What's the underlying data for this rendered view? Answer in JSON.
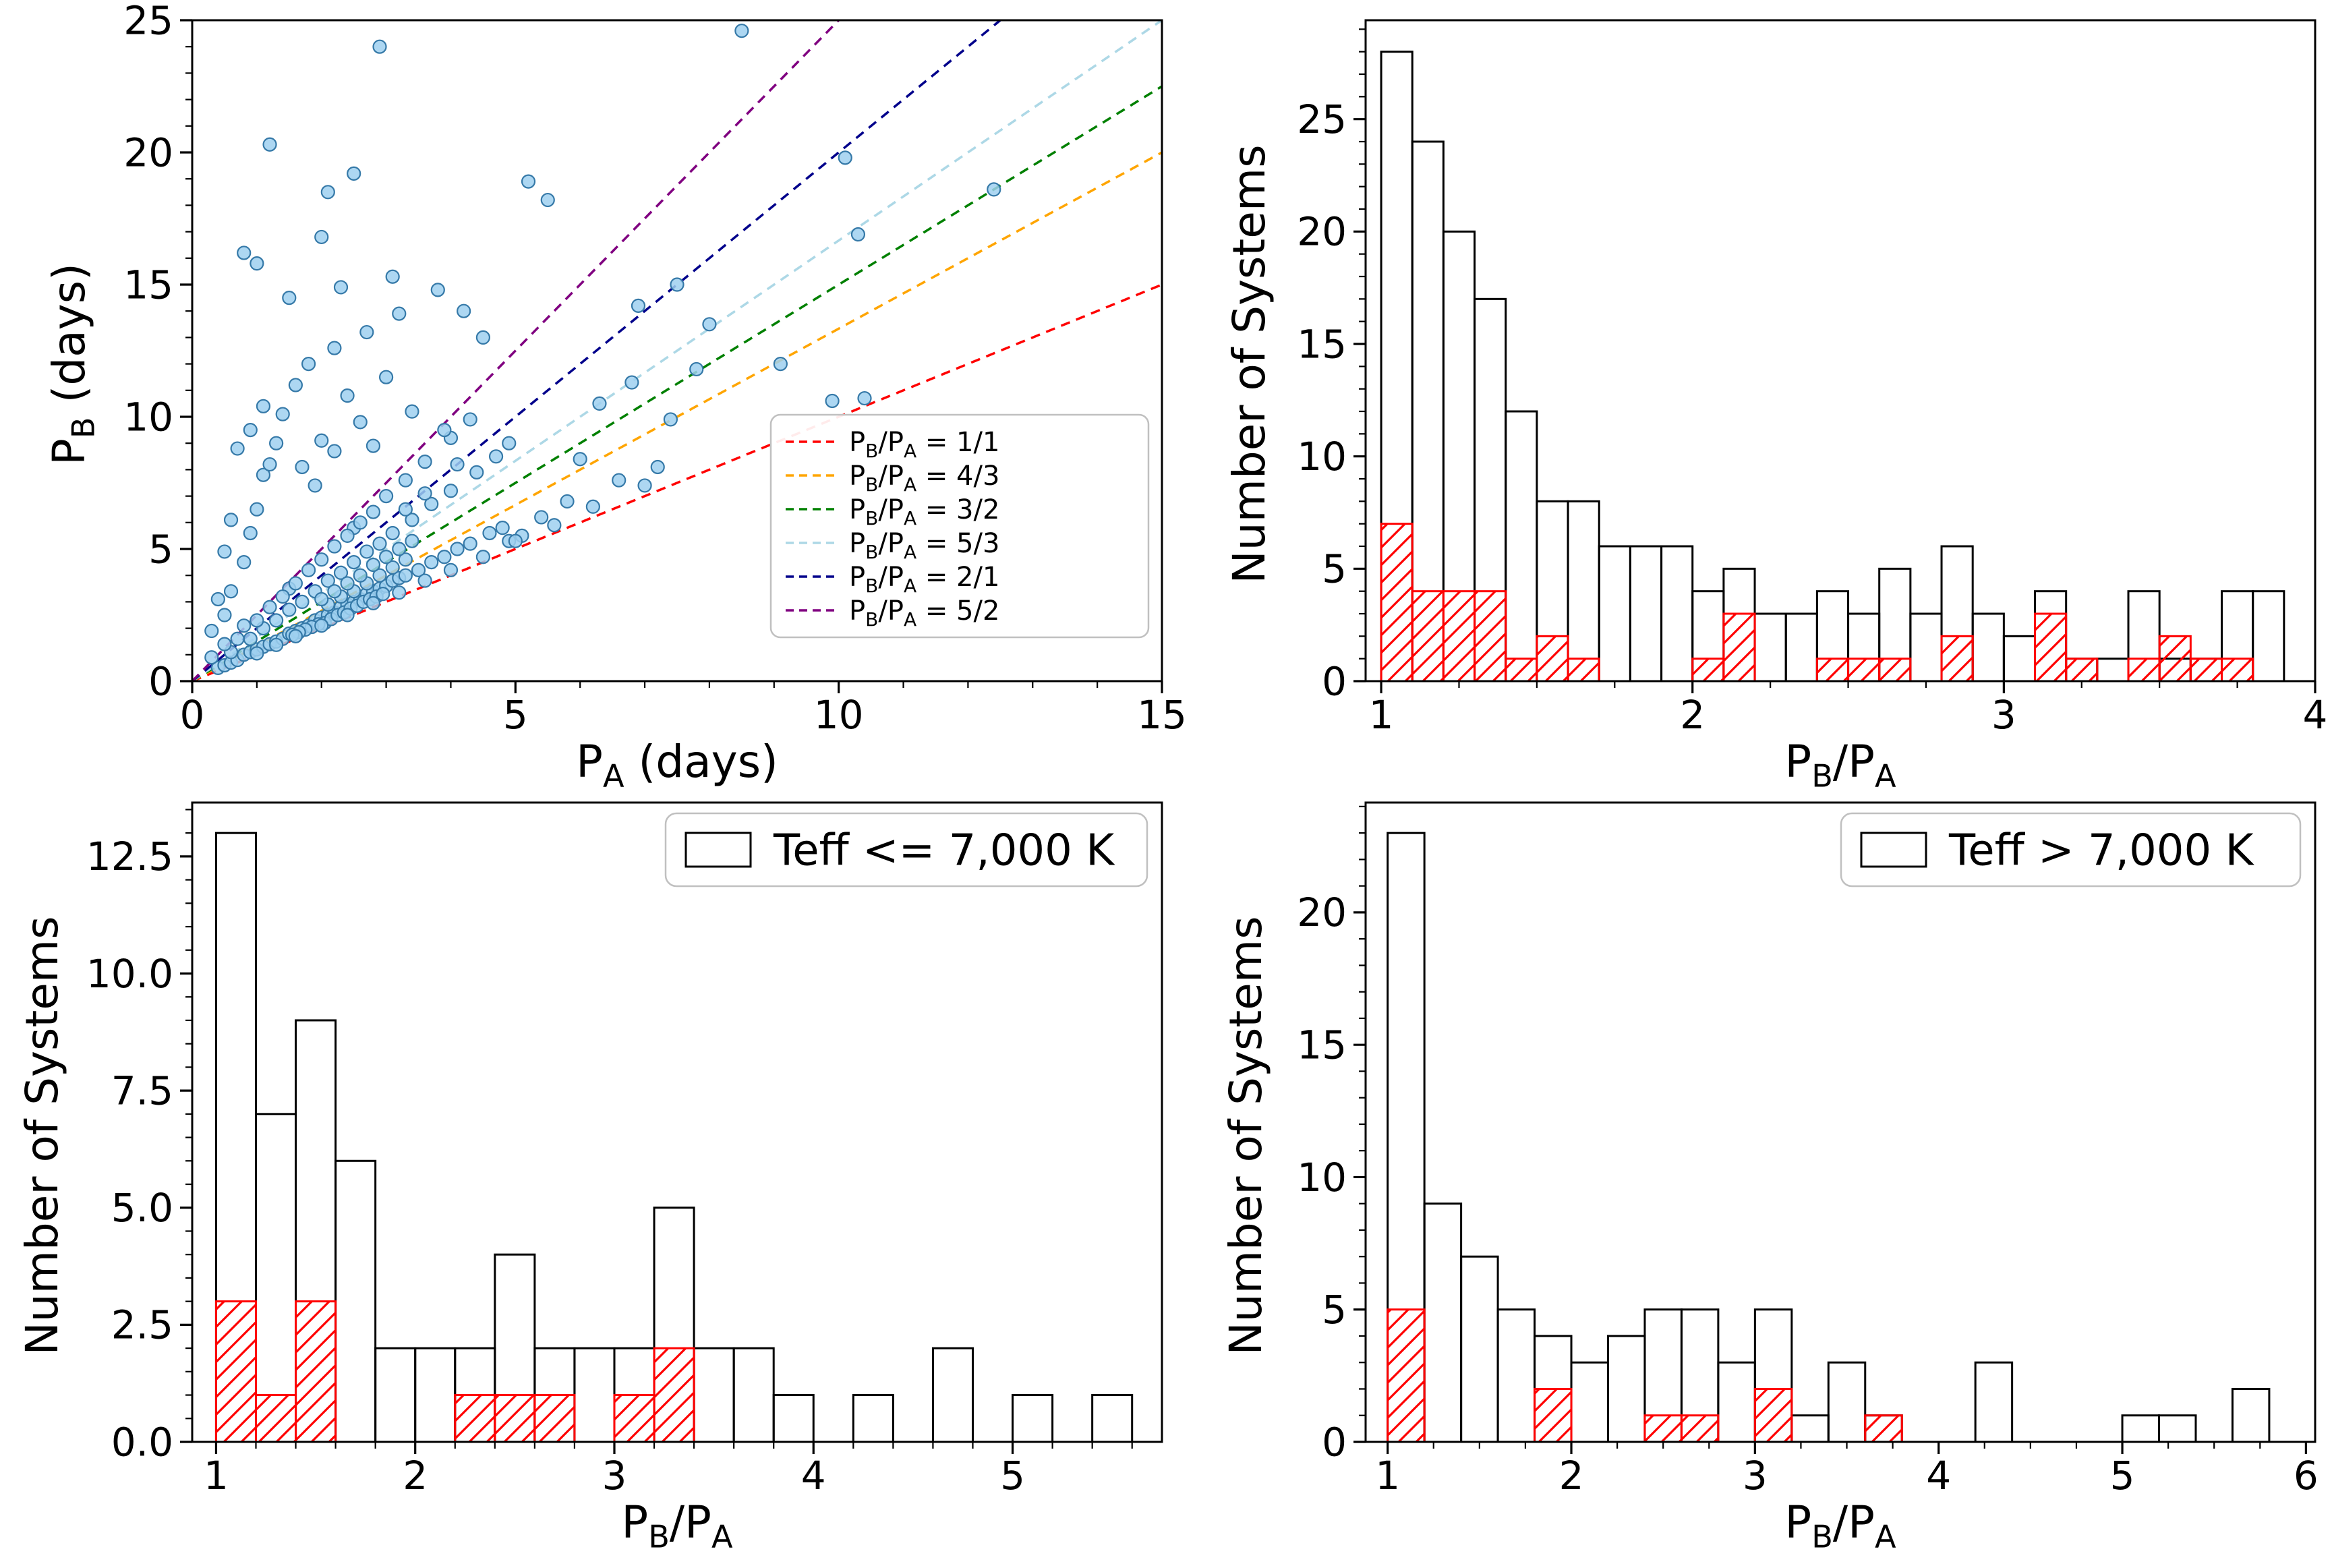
{
  "figure": {
    "background": "#ffffff"
  },
  "chart_data": [
    {
      "id": "scatter-periods",
      "type": "scatter",
      "title": "",
      "xlabel": "P_A (days)",
      "ylabel": "P_B (days)",
      "xlim": [
        0,
        15
      ],
      "ylim": [
        0,
        25
      ],
      "xticks": [
        0,
        5,
        10,
        15
      ],
      "xtick_labels": [
        "0",
        "5",
        "10",
        "15"
      ],
      "yticks": [
        0,
        5,
        10,
        15,
        20,
        25
      ],
      "ytick_labels": [
        "0",
        "5",
        "10",
        "15",
        "20",
        "25"
      ],
      "minor_x": 1,
      "minor_y": 1,
      "grid": false,
      "legend_position": "right-middle",
      "marker": {
        "fill": "#9fd0f0",
        "edge": "#3579a8"
      },
      "ratio_lines": [
        {
          "label": "P_B/P_A = 1/1",
          "slope": 1.0,
          "color": "red"
        },
        {
          "label": "P_B/P_A = 4/3",
          "slope": 1.3333,
          "color": "orange"
        },
        {
          "label": "P_B/P_A = 3/2",
          "slope": 1.5,
          "color": "green"
        },
        {
          "label": "P_B/P_A = 5/3",
          "slope": 1.6667,
          "color": "#add8e6"
        },
        {
          "label": "P_B/P_A = 2/1",
          "slope": 2.0,
          "color": "darkblue"
        },
        {
          "label": "P_B/P_A = 5/2",
          "slope": 2.5,
          "color": "purple"
        }
      ],
      "points": [
        [
          0.4,
          0.5
        ],
        [
          0.5,
          0.6
        ],
        [
          0.6,
          0.7
        ],
        [
          0.7,
          0.8
        ],
        [
          0.8,
          1.0
        ],
        [
          0.9,
          1.1
        ],
        [
          1.0,
          1.2
        ],
        [
          1.1,
          1.3
        ],
        [
          1.2,
          1.4
        ],
        [
          1.3,
          1.5
        ],
        [
          1.4,
          1.6
        ],
        [
          1.5,
          1.8
        ],
        [
          1.6,
          1.9
        ],
        [
          1.7,
          2.0
        ],
        [
          1.8,
          2.1
        ],
        [
          1.9,
          2.3
        ],
        [
          2.0,
          2.4
        ],
        [
          2.1,
          2.5
        ],
        [
          2.2,
          2.6
        ],
        [
          2.3,
          2.8
        ],
        [
          2.4,
          2.9
        ],
        [
          2.5,
          3.0
        ],
        [
          2.6,
          3.1
        ],
        [
          2.7,
          3.3
        ],
        [
          2.8,
          3.4
        ],
        [
          2.9,
          3.5
        ],
        [
          3.0,
          3.6
        ],
        [
          3.1,
          3.8
        ],
        [
          3.2,
          3.9
        ],
        [
          3.3,
          4.0
        ],
        [
          3.5,
          4.2
        ],
        [
          3.7,
          4.5
        ],
        [
          3.9,
          4.7
        ],
        [
          4.1,
          5.0
        ],
        [
          4.3,
          5.2
        ],
        [
          4.6,
          5.6
        ],
        [
          4.8,
          5.8
        ],
        [
          0.6,
          1.1
        ],
        [
          0.9,
          1.6
        ],
        [
          1.1,
          2.0
        ],
        [
          1.3,
          2.3
        ],
        [
          1.5,
          2.7
        ],
        [
          1.7,
          3.0
        ],
        [
          1.9,
          3.4
        ],
        [
          2.1,
          3.8
        ],
        [
          2.3,
          4.1
        ],
        [
          2.5,
          4.5
        ],
        [
          2.7,
          4.9
        ],
        [
          2.9,
          5.2
        ],
        [
          3.1,
          5.6
        ],
        [
          3.4,
          6.1
        ],
        [
          3.7,
          6.7
        ],
        [
          4.0,
          7.2
        ],
        [
          4.4,
          7.9
        ],
        [
          4.7,
          8.5
        ],
        [
          0.7,
          1.6
        ],
        [
          1.0,
          2.3
        ],
        [
          1.2,
          2.8
        ],
        [
          1.5,
          3.5
        ],
        [
          1.8,
          4.2
        ],
        [
          2.0,
          4.6
        ],
        [
          2.2,
          5.1
        ],
        [
          2.5,
          5.8
        ],
        [
          2.8,
          6.4
        ],
        [
          3.0,
          7.0
        ],
        [
          3.3,
          7.6
        ],
        [
          3.6,
          8.3
        ],
        [
          4.0,
          9.2
        ],
        [
          4.3,
          9.9
        ],
        [
          1.4,
          3.2
        ],
        [
          1.6,
          3.7
        ],
        [
          2.4,
          5.5
        ],
        [
          2.6,
          6.0
        ],
        [
          0.5,
          2.5
        ],
        [
          0.6,
          3.4
        ],
        [
          0.8,
          4.5
        ],
        [
          0.9,
          5.6
        ],
        [
          1.0,
          6.5
        ],
        [
          1.1,
          7.8
        ],
        [
          1.2,
          8.2
        ],
        [
          1.3,
          9.0
        ],
        [
          1.4,
          10.1
        ],
        [
          0.7,
          8.8
        ],
        [
          0.9,
          9.5
        ],
        [
          1.1,
          10.4
        ],
        [
          1.6,
          11.2
        ],
        [
          1.8,
          12.0
        ],
        [
          2.0,
          9.1
        ],
        [
          2.2,
          8.7
        ],
        [
          2.4,
          10.8
        ],
        [
          2.6,
          9.8
        ],
        [
          1.5,
          14.5
        ],
        [
          1.0,
          15.8
        ],
        [
          0.8,
          16.2
        ],
        [
          1.2,
          20.3
        ],
        [
          2.1,
          18.5
        ],
        [
          2.3,
          14.9
        ],
        [
          2.9,
          24.0
        ],
        [
          2.7,
          13.2
        ],
        [
          3.2,
          13.9
        ],
        [
          3.8,
          14.8
        ],
        [
          3.0,
          11.5
        ],
        [
          3.4,
          10.2
        ],
        [
          2.8,
          8.9
        ],
        [
          2.2,
          12.6
        ],
        [
          1.7,
          8.1
        ],
        [
          1.9,
          7.4
        ],
        [
          0.6,
          6.1
        ],
        [
          0.5,
          4.9
        ],
        [
          0.4,
          3.1
        ],
        [
          0.3,
          1.9
        ],
        [
          2.0,
          16.8
        ],
        [
          2.5,
          19.2
        ],
        [
          3.1,
          15.3
        ],
        [
          4.2,
          14.0
        ],
        [
          4.5,
          13.0
        ],
        [
          3.9,
          9.5
        ],
        [
          4.1,
          8.2
        ],
        [
          3.6,
          7.1
        ],
        [
          3.3,
          6.5
        ],
        [
          4.9,
          9.0
        ],
        [
          5.2,
          18.9
        ],
        [
          5.5,
          18.2
        ],
        [
          8.5,
          24.6
        ],
        [
          10.1,
          19.8
        ],
        [
          10.3,
          16.9
        ],
        [
          10.4,
          10.7
        ],
        [
          12.4,
          18.6
        ],
        [
          7.5,
          15.0
        ],
        [
          8.0,
          13.5
        ],
        [
          6.3,
          10.5
        ],
        [
          6.0,
          8.4
        ],
        [
          6.6,
          7.6
        ],
        [
          7.2,
          8.1
        ],
        [
          5.8,
          6.8
        ],
        [
          5.4,
          6.2
        ],
        [
          5.1,
          5.5
        ],
        [
          4.9,
          5.3
        ],
        [
          6.9,
          14.2
        ],
        [
          7.8,
          11.8
        ],
        [
          9.1,
          12.0
        ],
        [
          2.05,
          2.2
        ],
        [
          2.15,
          2.35
        ],
        [
          2.25,
          2.5
        ],
        [
          2.35,
          2.6
        ],
        [
          2.45,
          2.75
        ],
        [
          2.55,
          2.85
        ],
        [
          2.65,
          3.0
        ],
        [
          2.75,
          3.1
        ],
        [
          2.85,
          3.2
        ],
        [
          2.95,
          3.3
        ],
        [
          1.95,
          2.15
        ],
        [
          1.85,
          2.05
        ],
        [
          1.75,
          1.95
        ],
        [
          1.65,
          1.85
        ],
        [
          1.55,
          1.75
        ],
        [
          2.1,
          2.9
        ],
        [
          2.3,
          3.2
        ],
        [
          2.5,
          3.4
        ],
        [
          2.7,
          3.7
        ],
        [
          2.9,
          4.0
        ],
        [
          3.1,
          4.3
        ],
        [
          3.3,
          4.6
        ],
        [
          2.0,
          3.1
        ],
        [
          2.2,
          3.4
        ],
        [
          2.4,
          3.7
        ],
        [
          2.6,
          4.0
        ],
        [
          2.8,
          4.4
        ],
        [
          3.0,
          4.7
        ],
        [
          3.2,
          5.0
        ],
        [
          3.4,
          5.3
        ],
        [
          0.3,
          0.9
        ],
        [
          0.5,
          1.4
        ],
        [
          0.8,
          2.1
        ],
        [
          1.0,
          1.05
        ],
        [
          1.3,
          1.37
        ],
        [
          1.6,
          1.7
        ],
        [
          2.0,
          2.1
        ],
        [
          2.4,
          2.5
        ],
        [
          2.8,
          2.95
        ],
        [
          3.2,
          3.35
        ],
        [
          3.6,
          3.8
        ],
        [
          4.0,
          4.2
        ],
        [
          4.5,
          4.7
        ],
        [
          5.0,
          5.3
        ],
        [
          5.6,
          5.9
        ],
        [
          6.2,
          6.6
        ],
        [
          7.0,
          7.4
        ],
        [
          7.4,
          9.9
        ],
        [
          6.8,
          11.3
        ],
        [
          9.9,
          10.6
        ]
      ]
    },
    {
      "id": "hist-all",
      "type": "bar",
      "title": "",
      "xlabel": "P_B/P_A",
      "ylabel": "Number of Systems",
      "xlim": [
        0.95,
        4.0
      ],
      "ylim": [
        0,
        29.4
      ],
      "xticks": [
        1,
        2,
        3,
        4
      ],
      "xtick_labels": [
        "1",
        "2",
        "3",
        "4"
      ],
      "yticks": [
        0,
        5,
        10,
        15,
        20,
        25
      ],
      "ytick_labels": [
        "0",
        "5",
        "10",
        "15",
        "20",
        "25"
      ],
      "minor_x": 0.25,
      "minor_y": 1,
      "grid": false,
      "bin_start": 1.0,
      "bin_width": 0.1,
      "series": [
        {
          "name": "all-systems",
          "edge": "black",
          "hatch": false,
          "values": [
            28,
            24,
            20,
            17,
            12,
            8,
            8,
            6,
            6,
            6,
            4,
            5,
            3,
            3,
            4,
            3,
            5,
            3,
            6,
            3,
            2,
            4,
            1,
            1,
            4,
            1,
            1,
            4,
            4
          ]
        },
        {
          "name": "resonant-subset",
          "edge": "red",
          "hatch": true,
          "values": [
            7,
            4,
            4,
            4,
            1,
            2,
            1,
            0,
            0,
            0,
            1,
            3,
            0,
            0,
            1,
            1,
            1,
            0,
            2,
            0,
            0,
            3,
            1,
            0,
            1,
            2,
            1,
            1,
            0
          ]
        }
      ]
    },
    {
      "id": "hist-cool",
      "type": "bar",
      "title": "",
      "xlabel": "P_B/P_A",
      "ylabel": "Number of Systems",
      "legend_label": "Teff <= 7,000 K",
      "legend_position": "upper right",
      "xlim": [
        0.88,
        5.75
      ],
      "ylim": [
        0,
        13.65
      ],
      "xticks": [
        1,
        2,
        3,
        4,
        5
      ],
      "xtick_labels": [
        "1",
        "2",
        "3",
        "4",
        "5"
      ],
      "yticks": [
        0,
        2.5,
        5,
        7.5,
        10,
        12.5
      ],
      "ytick_labels": [
        "0.0",
        "2.5",
        "5.0",
        "7.5",
        "10.0",
        "12.5"
      ],
      "minor_x": 0.2,
      "minor_y": 0.5,
      "grid": false,
      "bin_start": 1.0,
      "bin_width": 0.2,
      "series": [
        {
          "name": "cool-systems",
          "edge": "black",
          "hatch": false,
          "values": [
            13,
            7,
            9,
            6,
            2,
            2,
            2,
            4,
            2,
            2,
            2,
            5,
            2,
            2,
            1,
            0,
            1,
            0,
            2,
            0,
            1,
            0,
            1
          ]
        },
        {
          "name": "resonant-subset",
          "edge": "red",
          "hatch": true,
          "values": [
            3,
            1,
            3,
            0,
            0,
            0,
            1,
            1,
            1,
            0,
            1,
            2,
            0,
            0,
            0,
            0,
            0,
            0,
            0,
            0,
            0,
            0,
            0
          ]
        }
      ]
    },
    {
      "id": "hist-hot",
      "type": "bar",
      "title": "",
      "xlabel": "P_B/P_A",
      "ylabel": "Number of Systems",
      "legend_label": "Teff > 7,000 K",
      "legend_position": "upper right",
      "xlim": [
        0.88,
        6.05
      ],
      "ylim": [
        0,
        24.15
      ],
      "xticks": [
        1,
        2,
        3,
        4,
        5,
        6
      ],
      "xtick_labels": [
        "1",
        "2",
        "3",
        "4",
        "5",
        "6"
      ],
      "yticks": [
        0,
        5,
        10,
        15,
        20
      ],
      "ytick_labels": [
        "0",
        "5",
        "10",
        "15",
        "20"
      ],
      "minor_x": 0.25,
      "minor_y": 1,
      "grid": false,
      "bin_start": 1.0,
      "bin_width": 0.2,
      "series": [
        {
          "name": "hot-systems",
          "edge": "black",
          "hatch": false,
          "values": [
            23,
            9,
            7,
            5,
            4,
            3,
            4,
            5,
            5,
            3,
            5,
            1,
            3,
            1,
            0,
            0,
            3,
            0,
            0,
            0,
            1,
            1,
            0,
            2
          ]
        },
        {
          "name": "resonant-subset",
          "edge": "red",
          "hatch": true,
          "values": [
            5,
            0,
            0,
            0,
            2,
            0,
            0,
            1,
            1,
            0,
            2,
            0,
            0,
            1,
            0,
            0,
            0,
            0,
            0,
            0,
            0,
            0,
            0,
            0
          ]
        }
      ]
    }
  ]
}
